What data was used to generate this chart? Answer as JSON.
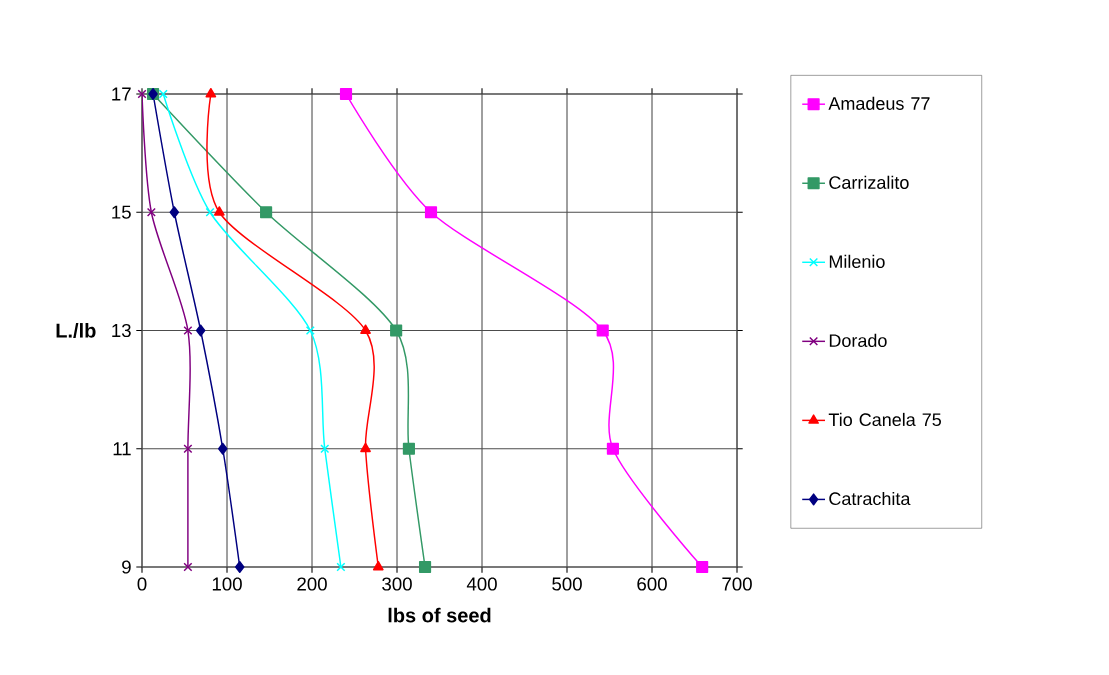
{
  "chart_data": {
    "type": "line",
    "xlabel": "lbs of seed",
    "ylabel": "L./lb",
    "xlim": [
      0,
      700
    ],
    "xticks": [
      0,
      100,
      200,
      300,
      400,
      500,
      600,
      700
    ],
    "ylim": [
      9,
      17
    ],
    "yticks": [
      9,
      11,
      13,
      15,
      17
    ],
    "grid": true,
    "legend": "right",
    "line_style": "solid",
    "series": [
      {
        "name": "Amadeus 77",
        "color": "#ff00ff",
        "marker": "square",
        "x": [
          240,
          340,
          542,
          554,
          659
        ],
        "values": [
          17,
          15,
          13,
          11,
          9
        ]
      },
      {
        "name": "Carrizalito",
        "color": "#339966",
        "marker": "square",
        "x": [
          13,
          146,
          299,
          314,
          333
        ],
        "values": [
          17,
          15,
          13,
          11,
          9
        ]
      },
      {
        "name": "Milenio",
        "color": "#00ffff",
        "marker": "cross",
        "x": [
          25,
          80,
          198,
          215,
          234
        ],
        "values": [
          17,
          15,
          13,
          11,
          9
        ]
      },
      {
        "name": "Dorado",
        "color": "#800080",
        "marker": "cross",
        "x": [
          0,
          11,
          54,
          54,
          54
        ],
        "values": [
          17,
          15,
          13,
          11,
          9
        ]
      },
      {
        "name": "Tio Canela 75",
        "color": "#ff0000",
        "marker": "triangle",
        "x": [
          81,
          91,
          263,
          263,
          278
        ],
        "values": [
          17,
          15,
          13,
          11,
          9
        ]
      },
      {
        "name": "Catrachita",
        "color": "#000080",
        "marker": "diamond",
        "x": [
          13,
          38,
          69,
          95,
          115
        ],
        "values": [
          17,
          15,
          13,
          11,
          9
        ]
      }
    ]
  }
}
